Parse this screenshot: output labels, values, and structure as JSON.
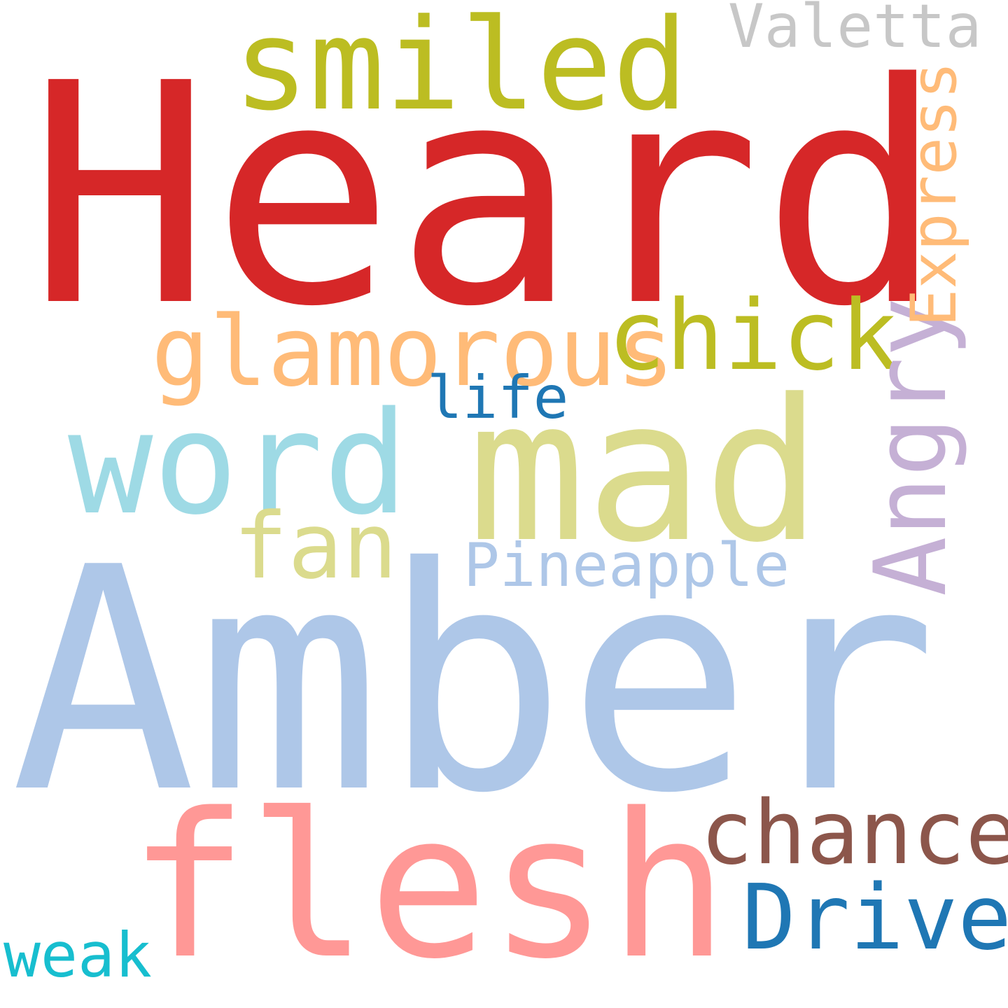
{
  "background": "#ffffff",
  "words": [
    {
      "text": "Heard",
      "color": "#d62728"
    },
    {
      "text": "Amber",
      "color": "#aec7e8"
    },
    {
      "text": "flesh",
      "color": "#ff9896"
    },
    {
      "text": "mad",
      "color": "#dbdb8d"
    },
    {
      "text": "smiled",
      "color": "#bcbd22"
    },
    {
      "text": "word",
      "color": "#9edae5"
    },
    {
      "text": "glamorous",
      "color": "#ffbb78"
    },
    {
      "text": "chick",
      "color": "#bcbd22"
    },
    {
      "text": "chance",
      "color": "#8c564b"
    },
    {
      "text": "Drive",
      "color": "#1f77b4"
    },
    {
      "text": "Angry",
      "color": "#c5b0d5"
    },
    {
      "text": "fan",
      "color": "#dbdb8d"
    },
    {
      "text": "Pineapple",
      "color": "#aec7e8"
    },
    {
      "text": "Express",
      "color": "#ffbb78"
    },
    {
      "text": "Valetta",
      "color": "#c7c7c7"
    },
    {
      "text": "life",
      "color": "#1f77b4"
    },
    {
      "text": "weak",
      "color": "#17becf"
    }
  ]
}
